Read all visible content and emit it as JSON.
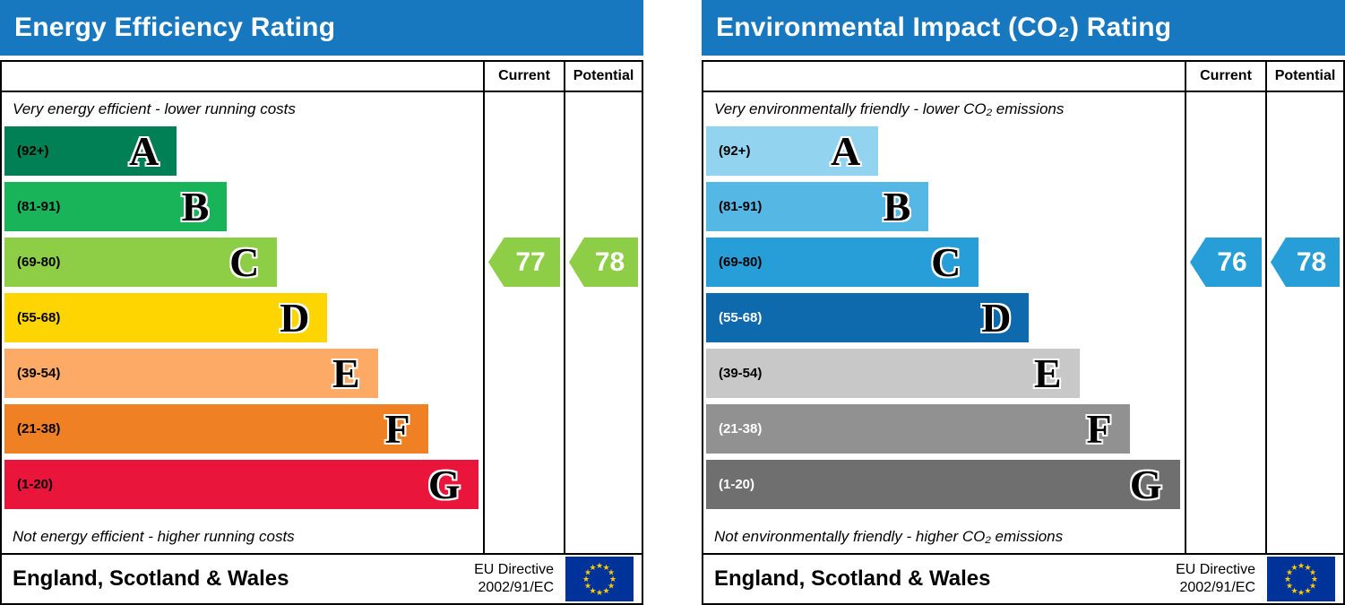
{
  "colors": {
    "header_bg": "#1878bf",
    "flag_bg": "#003399",
    "flag_star": "#ffcc00"
  },
  "chart_data": [
    {
      "type": "bar",
      "title": "Energy Efficiency Rating",
      "categories": [
        "A (92+)",
        "B (81-91)",
        "C (69-80)",
        "D (55-68)",
        "E (39-54)",
        "F (21-38)",
        "G (1-20)"
      ],
      "band_colors": [
        "#008054",
        "#19b459",
        "#8dce46",
        "#ffd500",
        "#fcaa65",
        "#ef8023",
        "#e9153b"
      ],
      "current": 77,
      "potential": 78,
      "current_band": "C",
      "potential_band": "C",
      "region": "England, Scotland & Wales"
    },
    {
      "type": "bar",
      "title": "Environmental Impact (CO₂) Rating",
      "categories": [
        "A (92+)",
        "B (81-91)",
        "C (69-80)",
        "D (55-68)",
        "E (39-54)",
        "F (21-38)",
        "G (1-20)"
      ],
      "band_colors": [
        "#92d3f0",
        "#55b7e4",
        "#289ed8",
        "#0f69ad",
        "#c8c8c8",
        "#919191",
        "#6f6f6f"
      ],
      "current": 76,
      "potential": 78,
      "current_band": "C",
      "potential_band": "C",
      "region": "England, Scotland & Wales"
    }
  ],
  "panels": [
    {
      "title": "Energy Efficiency Rating",
      "header": {
        "current": "Current",
        "potential": "Potential"
      },
      "top_note": "Very energy efficient - lower running costs",
      "bottom_note": "Not energy efficient - higher running costs",
      "bands": [
        {
          "letter": "A",
          "range": "(92+)",
          "color": "#008054",
          "width_pct": 36,
          "range_color": "#000000"
        },
        {
          "letter": "B",
          "range": "(81-91)",
          "color": "#19b459",
          "width_pct": 46.5,
          "range_color": "#000000"
        },
        {
          "letter": "C",
          "range": "(69-80)",
          "color": "#8dce46",
          "width_pct": 57,
          "range_color": "#000000"
        },
        {
          "letter": "D",
          "range": "(55-68)",
          "color": "#ffd500",
          "width_pct": 67.5,
          "range_color": "#000000"
        },
        {
          "letter": "E",
          "range": "(39-54)",
          "color": "#fcaa65",
          "width_pct": 78,
          "range_color": "#000000"
        },
        {
          "letter": "F",
          "range": "(21-38)",
          "color": "#ef8023",
          "width_pct": 88.5,
          "range_color": "#000000"
        },
        {
          "letter": "G",
          "range": "(1-20)",
          "color": "#e9153b",
          "width_pct": 99,
          "range_color": "#000000"
        }
      ],
      "current": {
        "value": "77",
        "color": "#8dce46",
        "band_index": 2
      },
      "potential": {
        "value": "78",
        "color": "#8dce46",
        "band_index": 2
      },
      "footer": {
        "region": "England, Scotland & Wales",
        "directive_line1": "EU Directive",
        "directive_line2": "2002/91/EC"
      }
    },
    {
      "title": "Environmental Impact (CO₂) Rating",
      "header": {
        "current": "Current",
        "potential": "Potential"
      },
      "top_note": "Very environmentally friendly - lower CO₂ emissions",
      "bottom_note": "Not environmentally friendly - higher CO₂ emissions",
      "bands": [
        {
          "letter": "A",
          "range": "(92+)",
          "color": "#92d3f0",
          "width_pct": 36,
          "range_color": "#000000"
        },
        {
          "letter": "B",
          "range": "(81-91)",
          "color": "#55b7e4",
          "width_pct": 46.5,
          "range_color": "#000000"
        },
        {
          "letter": "C",
          "range": "(69-80)",
          "color": "#289ed8",
          "width_pct": 57,
          "range_color": "#000000"
        },
        {
          "letter": "D",
          "range": "(55-68)",
          "color": "#0f69ad",
          "width_pct": 67.5,
          "range_color": "#ffffff"
        },
        {
          "letter": "E",
          "range": "(39-54)",
          "color": "#c8c8c8",
          "width_pct": 78,
          "range_color": "#000000"
        },
        {
          "letter": "F",
          "range": "(21-38)",
          "color": "#919191",
          "width_pct": 88.5,
          "range_color": "#ffffff"
        },
        {
          "letter": "G",
          "range": "(1-20)",
          "color": "#6f6f6f",
          "width_pct": 99,
          "range_color": "#ffffff"
        }
      ],
      "current": {
        "value": "76",
        "color": "#289ed8",
        "band_index": 2
      },
      "potential": {
        "value": "78",
        "color": "#289ed8",
        "band_index": 2
      },
      "footer": {
        "region": "England, Scotland & Wales",
        "directive_line1": "EU Directive",
        "directive_line2": "2002/91/EC"
      }
    }
  ]
}
